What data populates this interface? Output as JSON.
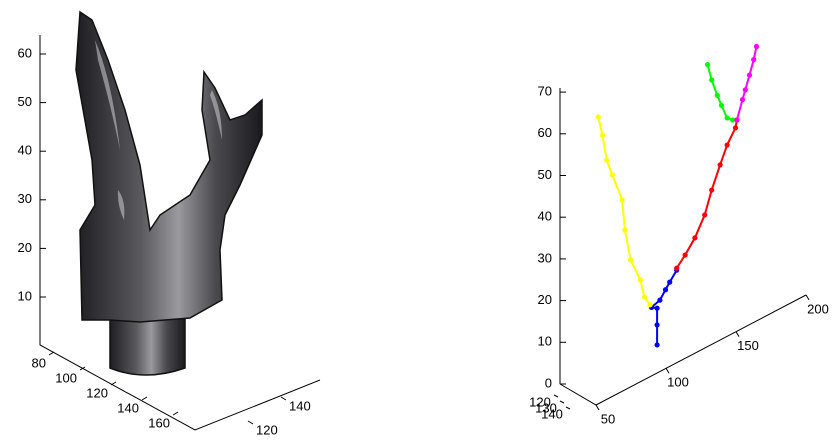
{
  "chart_data": [
    {
      "type": "surface3d",
      "zlim": [
        0,
        65
      ],
      "zticks": [
        10,
        20,
        30,
        40,
        50,
        60
      ],
      "xlim": [
        70,
        170
      ],
      "xticks": [
        80,
        100,
        120,
        140,
        160
      ],
      "ylim": [
        110,
        150
      ],
      "yticks": [
        120,
        140
      ]
    },
    {
      "type": "scatter3d",
      "zlim": [
        0,
        75
      ],
      "zticks": [
        0,
        10,
        20,
        30,
        40,
        50,
        60,
        70
      ],
      "xlim": [
        50,
        200
      ],
      "xticks": [
        50,
        100,
        150,
        200
      ],
      "ylim": [
        120,
        140
      ],
      "yticks": [
        120,
        130,
        140
      ],
      "series": [
        {
          "color": "#0000ff",
          "x": [
            109,
            109,
            109,
            105,
            111,
            115,
            118,
            123
          ],
          "y": [
            130,
            130,
            130,
            130,
            130,
            130,
            130,
            130
          ],
          "z": [
            10,
            14.8,
            18.8,
            19.7,
            20.4,
            22.2,
            23.5,
            25.5
          ]
        },
        {
          "color": "#ff0000",
          "x": [
            123,
            129,
            136,
            143,
            148,
            154,
            159,
            165,
            166
          ],
          "y": [
            130,
            130,
            130,
            130,
            130,
            130,
            130,
            130,
            130
          ],
          "z": [
            26,
            28.1,
            31,
            35.3,
            40.4,
            45.4,
            49.3,
            52.4,
            54.1
          ]
        },
        {
          "color": "#ffff00",
          "x": [
            67,
            70,
            73,
            77,
            84,
            86,
            90,
            97,
            100,
            104
          ],
          "y": [
            130,
            130,
            130,
            130,
            130,
            130,
            130,
            130,
            130,
            130
          ],
          "z": [
            71.9,
            67,
            60.5,
            56.3,
            49.1,
            41.5,
            33.7,
            27.7,
            23,
            20.5
          ]
        },
        {
          "color": "#00ff00",
          "x": [
            145,
            148,
            152,
            155,
            159,
            163
          ],
          "y": [
            130,
            130,
            130,
            130,
            130,
            130
          ],
          "z": [
            71,
            66.8,
            62.4,
            59.5,
            55.8,
            54.6
          ]
        },
        {
          "color": "#ff00ff",
          "x": [
            166,
            170,
            172,
            175,
            178,
            180
          ],
          "y": [
            130,
            130,
            130,
            130,
            130,
            130
          ],
          "z": [
            54.1,
            58.3,
            60.3,
            63.3,
            66.5,
            69.3
          ]
        }
      ]
    }
  ]
}
